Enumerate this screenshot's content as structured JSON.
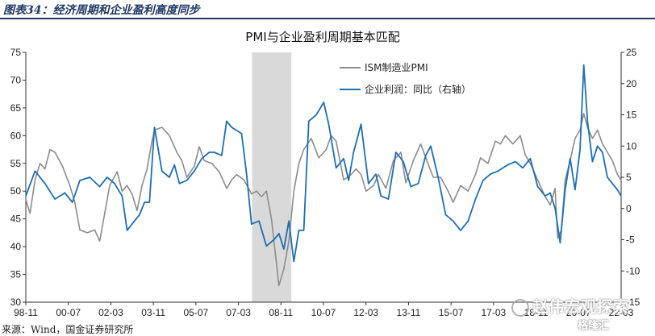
{
  "caption": "图表34：经济周期和企业盈利高度同步",
  "source": "来源：Wind，国金证券研究所",
  "watermark": "赵伟宏观探索",
  "watermark_sub": "格隆汇",
  "chart_data": {
    "type": "line",
    "title": "PMI与企业盈利周期基本匹配",
    "x_ticks": [
      "98-11",
      "00-07",
      "02-03",
      "03-11",
      "05-07",
      "07-03",
      "08-11",
      "10-07",
      "12-03",
      "13-11",
      "15-07",
      "17-03",
      "18-11",
      "20-07",
      "22-03"
    ],
    "x_range": [
      1998.83,
      2022.75
    ],
    "y_left": [
      30,
      75
    ],
    "y_left_ticks": [
      30,
      35,
      40,
      45,
      50,
      55,
      60,
      65,
      70,
      75
    ],
    "y_right": [
      -15,
      25
    ],
    "y_right_ticks": [
      -15,
      -10,
      -5,
      0,
      5,
      10,
      15,
      20,
      25
    ],
    "shaded_period": [
      2007.92,
      2009.5
    ],
    "colors": {
      "pmi": "#8c8c8c",
      "profit": "#1f6eb0",
      "shade": "#d9d9d9"
    },
    "series": [
      {
        "name": "ISM制造业PMI",
        "axis": "left",
        "points": [
          [
            1998.83,
            48.5
          ],
          [
            1999.0,
            46.0
          ],
          [
            1999.2,
            52.0
          ],
          [
            1999.4,
            55.0
          ],
          [
            1999.6,
            54.0
          ],
          [
            1999.8,
            57.5
          ],
          [
            2000.0,
            57.0
          ],
          [
            2000.3,
            54.5
          ],
          [
            2000.6,
            51.0
          ],
          [
            2000.8,
            48.0
          ],
          [
            2001.0,
            43.0
          ],
          [
            2001.3,
            42.5
          ],
          [
            2001.6,
            43.0
          ],
          [
            2001.8,
            41.0
          ],
          [
            2002.0,
            46.0
          ],
          [
            2002.2,
            51.0
          ],
          [
            2002.5,
            53.5
          ],
          [
            2002.7,
            50.0
          ],
          [
            2002.9,
            51.0
          ],
          [
            2003.1,
            49.5
          ],
          [
            2003.3,
            46.5
          ],
          [
            2003.5,
            51.0
          ],
          [
            2003.7,
            54.0
          ],
          [
            2003.9,
            59.0
          ],
          [
            2004.0,
            61.0
          ],
          [
            2004.3,
            61.5
          ],
          [
            2004.6,
            60.0
          ],
          [
            2004.9,
            57.0
          ],
          [
            2005.1,
            55.5
          ],
          [
            2005.3,
            52.5
          ],
          [
            2005.6,
            54.5
          ],
          [
            2005.8,
            58.0
          ],
          [
            2006.0,
            55.5
          ],
          [
            2006.3,
            55.0
          ],
          [
            2006.6,
            53.5
          ],
          [
            2006.9,
            50.5
          ],
          [
            2007.1,
            52.0
          ],
          [
            2007.3,
            53.0
          ],
          [
            2007.6,
            52.0
          ],
          [
            2007.9,
            49.5
          ],
          [
            2008.1,
            50.0
          ],
          [
            2008.3,
            49.0
          ],
          [
            2008.5,
            50.0
          ],
          [
            2008.7,
            45.0
          ],
          [
            2008.9,
            37.0
          ],
          [
            2009.0,
            33.0
          ],
          [
            2009.2,
            36.0
          ],
          [
            2009.4,
            41.0
          ],
          [
            2009.6,
            50.0
          ],
          [
            2009.8,
            55.0
          ],
          [
            2010.0,
            57.5
          ],
          [
            2010.3,
            59.5
          ],
          [
            2010.6,
            56.0
          ],
          [
            2010.9,
            57.5
          ],
          [
            2011.1,
            60.0
          ],
          [
            2011.3,
            59.0
          ],
          [
            2011.6,
            52.0
          ],
          [
            2011.9,
            53.0
          ],
          [
            2012.1,
            54.0
          ],
          [
            2012.3,
            53.0
          ],
          [
            2012.5,
            50.0
          ],
          [
            2012.8,
            51.0
          ],
          [
            2013.0,
            53.0
          ],
          [
            2013.3,
            50.5
          ],
          [
            2013.6,
            55.5
          ],
          [
            2013.9,
            57.0
          ],
          [
            2014.1,
            51.5
          ],
          [
            2014.4,
            55.5
          ],
          [
            2014.7,
            58.5
          ],
          [
            2014.9,
            56.0
          ],
          [
            2015.2,
            52.5
          ],
          [
            2015.5,
            52.5
          ],
          [
            2015.8,
            50.0
          ],
          [
            2016.0,
            48.0
          ],
          [
            2016.3,
            51.0
          ],
          [
            2016.6,
            50.0
          ],
          [
            2016.9,
            53.0
          ],
          [
            2017.1,
            56.0
          ],
          [
            2017.4,
            55.0
          ],
          [
            2017.7,
            59.0
          ],
          [
            2017.9,
            58.5
          ],
          [
            2018.1,
            60.0
          ],
          [
            2018.4,
            58.5
          ],
          [
            2018.7,
            60.0
          ],
          [
            2018.9,
            56.5
          ],
          [
            2019.1,
            55.0
          ],
          [
            2019.4,
            52.0
          ],
          [
            2019.7,
            49.0
          ],
          [
            2019.9,
            47.5
          ],
          [
            2020.1,
            50.5
          ],
          [
            2020.2,
            41.5
          ],
          [
            2020.35,
            43.0
          ],
          [
            2020.5,
            52.0
          ],
          [
            2020.7,
            55.5
          ],
          [
            2020.9,
            59.5
          ],
          [
            2021.1,
            61.0
          ],
          [
            2021.25,
            64.0
          ],
          [
            2021.4,
            61.5
          ],
          [
            2021.6,
            59.5
          ],
          [
            2021.8,
            61.0
          ],
          [
            2022.0,
            58.5
          ],
          [
            2022.2,
            57.0
          ],
          [
            2022.4,
            55.5
          ],
          [
            2022.6,
            53.0
          ],
          [
            2022.75,
            52.0
          ]
        ]
      },
      {
        "name": "企业利润：同比（右轴）",
        "axis": "right",
        "points": [
          [
            1998.83,
            2.0
          ],
          [
            1999.2,
            6.0
          ],
          [
            1999.6,
            4.0
          ],
          [
            2000.0,
            1.5
          ],
          [
            2000.4,
            2.5
          ],
          [
            2000.7,
            1.0
          ],
          [
            2001.0,
            4.5
          ],
          [
            2001.4,
            5.0
          ],
          [
            2001.8,
            3.5
          ],
          [
            2002.1,
            5.0
          ],
          [
            2002.4,
            4.0
          ],
          [
            2002.7,
            2.0
          ],
          [
            2002.9,
            -3.5
          ],
          [
            2003.1,
            -2.5
          ],
          [
            2003.4,
            -1.0
          ],
          [
            2003.6,
            1.0
          ],
          [
            2003.8,
            1.0
          ],
          [
            2004.0,
            13.0
          ],
          [
            2004.3,
            6.0
          ],
          [
            2004.6,
            5.0
          ],
          [
            2004.8,
            7.0
          ],
          [
            2005.0,
            4.0
          ],
          [
            2005.3,
            4.5
          ],
          [
            2005.6,
            6.0
          ],
          [
            2005.9,
            8.0
          ],
          [
            2006.2,
            9.0
          ],
          [
            2006.4,
            9.0
          ],
          [
            2006.7,
            8.5
          ],
          [
            2006.9,
            14.0
          ],
          [
            2007.1,
            13.0
          ],
          [
            2007.5,
            12.0
          ],
          [
            2007.7,
            5.5
          ],
          [
            2007.9,
            -2.5
          ],
          [
            2008.2,
            -2.0
          ],
          [
            2008.5,
            -6.0
          ],
          [
            2008.8,
            -5.0
          ],
          [
            2009.0,
            -4.0
          ],
          [
            2009.2,
            -6.5
          ],
          [
            2009.4,
            -2.0
          ],
          [
            2009.6,
            -8.5
          ],
          [
            2009.8,
            -3.5
          ],
          [
            2010.0,
            -3.5
          ],
          [
            2010.2,
            14.0
          ],
          [
            2010.5,
            15.0
          ],
          [
            2010.8,
            17.0
          ],
          [
            2011.0,
            13.5
          ],
          [
            2011.3,
            6.5
          ],
          [
            2011.6,
            8.0
          ],
          [
            2011.8,
            4.5
          ],
          [
            2012.0,
            9.0
          ],
          [
            2012.3,
            13.5
          ],
          [
            2012.6,
            4.0
          ],
          [
            2012.9,
            5.5
          ],
          [
            2013.1,
            2.0
          ],
          [
            2013.4,
            1.5
          ],
          [
            2013.7,
            9.0
          ],
          [
            2014.0,
            7.5
          ],
          [
            2014.3,
            3.5
          ],
          [
            2014.6,
            4.0
          ],
          [
            2014.9,
            8.5
          ],
          [
            2015.1,
            10.0
          ],
          [
            2015.4,
            5.0
          ],
          [
            2015.7,
            -1.0
          ],
          [
            2016.0,
            -2.0
          ],
          [
            2016.3,
            -3.5
          ],
          [
            2016.6,
            -2.0
          ],
          [
            2016.9,
            1.5
          ],
          [
            2017.2,
            4.5
          ],
          [
            2017.5,
            5.5
          ],
          [
            2017.8,
            6.0
          ],
          [
            2018.2,
            7.0
          ],
          [
            2018.5,
            7.5
          ],
          [
            2018.8,
            6.5
          ],
          [
            2019.1,
            8.0
          ],
          [
            2019.4,
            3.5
          ],
          [
            2019.7,
            2.0
          ],
          [
            2019.9,
            2.5
          ],
          [
            2020.1,
            0.0
          ],
          [
            2020.3,
            -5.5
          ],
          [
            2020.5,
            3.0
          ],
          [
            2020.7,
            8.0
          ],
          [
            2020.9,
            3.0
          ],
          [
            2021.1,
            9.5
          ],
          [
            2021.25,
            23.0
          ],
          [
            2021.4,
            14.0
          ],
          [
            2021.6,
            7.5
          ],
          [
            2021.8,
            10.0
          ],
          [
            2022.0,
            9.0
          ],
          [
            2022.2,
            5.0
          ],
          [
            2022.4,
            4.0
          ],
          [
            2022.6,
            3.0
          ],
          [
            2022.75,
            2.0
          ]
        ]
      }
    ]
  }
}
